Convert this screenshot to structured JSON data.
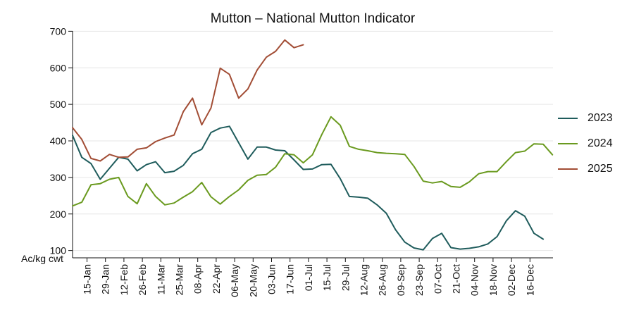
{
  "chart_data": {
    "type": "line",
    "title": "Mutton – National Mutton Indicator",
    "xlabel": "",
    "ylabel": "Ac/kg cwt",
    "ylim": [
      80,
      720
    ],
    "yticks": [
      100,
      200,
      300,
      400,
      500,
      600,
      700
    ],
    "xticks": [
      "15-Jan",
      "29-Jan",
      "12-Feb",
      "26-Feb",
      "11-Mar",
      "25-Mar",
      "08-Apr",
      "22-Apr",
      "06-May",
      "20-May",
      "03-Jun",
      "17-Jun",
      "01-Jul",
      "15-Jul",
      "29-Jul",
      "12-Aug",
      "26-Aug",
      "09-Sep",
      "23-Sep",
      "07-Oct",
      "21-Oct",
      "04-Nov",
      "18-Nov",
      "02-Dec",
      "16-Dec"
    ],
    "grid": "horizontal",
    "legend_position": "right",
    "series": [
      {
        "name": "2023",
        "color": "#1f5c5c",
        "values": [
          415,
          355,
          338,
          295,
          325,
          355,
          350,
          318,
          335,
          343,
          313,
          317,
          333,
          365,
          377,
          423,
          435,
          440,
          395,
          350,
          383,
          383,
          375,
          373,
          348,
          322,
          323,
          335,
          336,
          297,
          248,
          246,
          243,
          225,
          202,
          157,
          123,
          107,
          102,
          133,
          147,
          108,
          104,
          106,
          110,
          118,
          138,
          181,
          209,
          194,
          147,
          131
        ]
      },
      {
        "name": "2024",
        "color": "#6a9a1f",
        "values": [
          222,
          232,
          280,
          283,
          295,
          300,
          248,
          228,
          283,
          248,
          225,
          230,
          246,
          261,
          286,
          247,
          227,
          248,
          266,
          292,
          306,
          308,
          328,
          365,
          362,
          340,
          362,
          417,
          466,
          443,
          385,
          377,
          373,
          368,
          366,
          365,
          363,
          330,
          290,
          285,
          289,
          275,
          273,
          288,
          310,
          316,
          316,
          343,
          368,
          372,
          392,
          391,
          362
        ]
      },
      {
        "name": "2025",
        "color": "#a24d35",
        "values": [
          436,
          404,
          352,
          345,
          363,
          355,
          356,
          377,
          381,
          398,
          408,
          416,
          480,
          517,
          444,
          490,
          599,
          582,
          517,
          542,
          594,
          629,
          645,
          676,
          655,
          663
        ]
      }
    ]
  }
}
